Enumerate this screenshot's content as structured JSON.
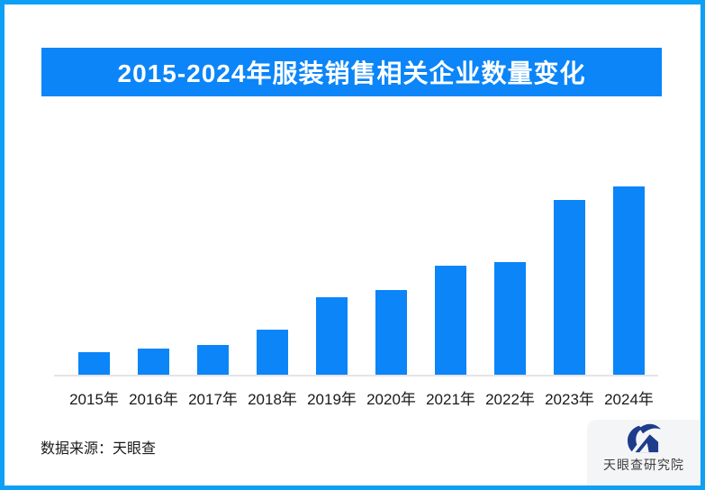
{
  "title": "2015-2024年服装销售相关企业数量变化",
  "source_note": "数据来源：天眼查",
  "logo": {
    "icon": "tianyancha-eye-house-logo",
    "text": "天眼查研究院"
  },
  "colors": {
    "border_blue": "#0fa0f6",
    "banner_blue": "#0b85f8",
    "bar_blue": "#0b85f8",
    "logo_navy": "#1e3c8c",
    "panel_gray": "#f4f5f6",
    "axis_gray": "#e4e4e4",
    "text_dark": "#1a1a1a"
  },
  "chart_data": {
    "type": "bar",
    "title": "2015-2024年服装销售相关企业数量变化",
    "categories": [
      "2015年",
      "2016年",
      "2017年",
      "2018年",
      "2019年",
      "2020年",
      "2021年",
      "2022年",
      "2023年",
      "2024年"
    ],
    "values_relative": [
      0.12,
      0.14,
      0.16,
      0.24,
      0.41,
      0.45,
      0.58,
      0.6,
      0.93,
      1.0
    ],
    "xlabel": "",
    "ylabel": "",
    "y_axis_shown": false,
    "value_labels_shown": false,
    "grid": false,
    "legend": "none",
    "bar_color": "#0b85f8",
    "baseline_color": "#e4e4e4"
  }
}
